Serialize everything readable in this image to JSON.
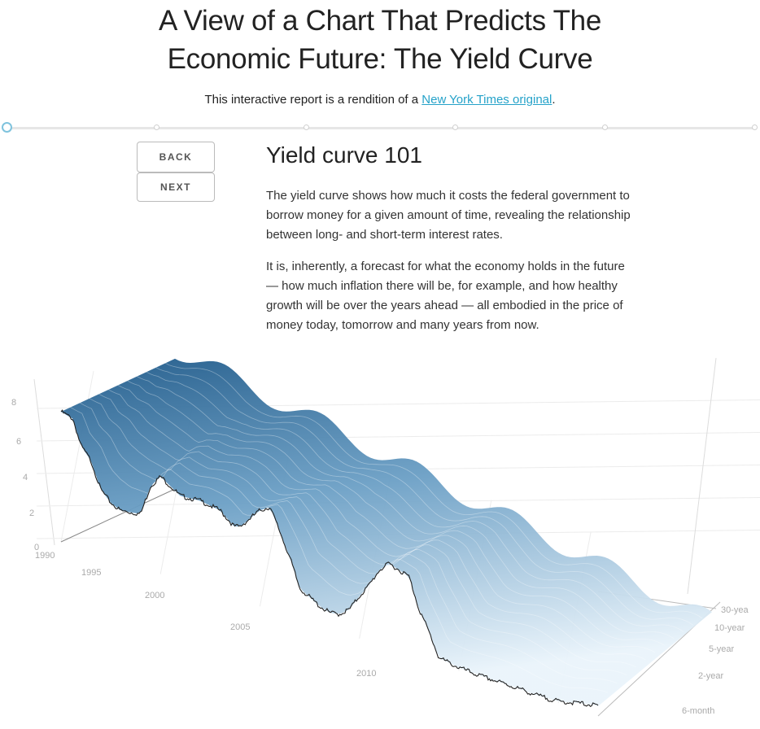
{
  "page": {
    "title_line1": "A View of a Chart That Predicts The",
    "title_line2": "Economic Future: The Yield Curve",
    "subtitle_prefix": "This interactive report is a rendition of a ",
    "subtitle_link": "New York Times original",
    "subtitle_suffix": "."
  },
  "progress": {
    "steps": 6,
    "current": 1
  },
  "nav": {
    "back_label": "BACK",
    "next_label": "NEXT"
  },
  "section": {
    "title": "Yield curve 101",
    "paragraphs": [
      "The yield curve shows how much it costs the federal government to borrow money for a given amount of time, revealing the relationship between long- and short-term interest rates.",
      "It is, inherently, a forecast for what the economy holds in the future — how much inflation there will be, for example, and how healthy growth will be over the years ahead — all embodied in the price of money today, tomorrow and many years from now."
    ]
  },
  "colors": {
    "accent_link": "#25a2c9",
    "surface_high": "#1f5a8a",
    "surface_low": "#e8f3fa",
    "line": "#222222"
  },
  "chart_data": {
    "type": "surface",
    "x_axis": {
      "ticks": [
        "1990",
        "1995",
        "2000",
        "2005",
        "2010"
      ]
    },
    "y_axis": {
      "ticks": [
        "0",
        "2",
        "4",
        "6",
        "8"
      ],
      "range": [
        0,
        9
      ]
    },
    "z_axis": {
      "ticks": [
        "6-month",
        "2-year",
        "5-year",
        "10-year",
        "30-yea"
      ]
    },
    "series": [
      {
        "maturity": "6-month",
        "x": [
          1990.0,
          1990.6,
          1991.0,
          1991.5,
          1992.0,
          1992.5,
          1993.0,
          1994.0,
          1994.5,
          1995.0,
          1995.5,
          1996.0,
          1997.0,
          1998.0,
          1998.7,
          1999.0,
          2000.0,
          2000.5,
          2001.0,
          2001.5,
          2002.0,
          2003.0,
          2003.5,
          2004.0,
          2004.5,
          2005.0,
          2005.5,
          2006.0,
          2006.5,
          2007.0,
          2007.5,
          2008.0,
          2008.5,
          2009.0,
          2010.0,
          2011.0,
          2012.0,
          2013.0,
          2014.0,
          2015.0,
          2016.0,
          2016.9
        ],
        "y": [
          8.0,
          7.8,
          6.3,
          5.6,
          4.0,
          3.4,
          3.1,
          3.3,
          5.2,
          6.0,
          5.6,
          5.2,
          5.3,
          5.1,
          4.4,
          4.5,
          5.9,
          6.3,
          5.0,
          3.6,
          1.9,
          1.2,
          1.0,
          1.1,
          1.6,
          2.6,
          3.5,
          4.6,
          5.2,
          5.0,
          4.8,
          3.0,
          1.8,
          0.4,
          0.2,
          0.12,
          0.12,
          0.1,
          0.05,
          0.1,
          0.4,
          0.6
        ]
      }
    ]
  }
}
